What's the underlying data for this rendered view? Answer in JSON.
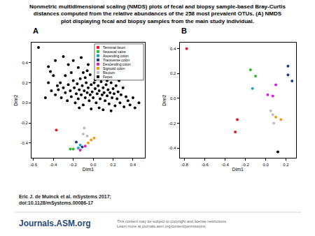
{
  "page": {
    "title_lines": [
      "Nonmetric multidimensional scaling (NMDS) plots of fecal and biopsy sample-based Bray-Curtis",
      "distances computed from the relative abundances of the 258 most prevalent OTUs. (A) NMDS",
      "plot displaying fecal and biopsy samples from the main study individual."
    ],
    "citation_lines": [
      "Eric J. de Muinck et al. mSystems 2017;",
      "doi:10.1128/mSystems.00086-17"
    ],
    "logo": "Journals.ASM.org",
    "notice_lines": [
      "This content may be subject to copyright and license restrictions.",
      "Learn more at journals.asm.org/content/permissions"
    ]
  },
  "chart_data": [
    {
      "type": "scatter",
      "title": "A",
      "x_label": "Dim1",
      "y_label": "Dim2",
      "xlim": [
        -0.62,
        0.52
      ],
      "xticks": [
        -0.6,
        -0.4,
        -0.2,
        {
          "value": 0,
          "label": "0.0"
        },
        0.2,
        0.4
      ],
      "ylim": [
        -0.55,
        0.6
      ],
      "yticks": [
        -0.4,
        -0.2,
        {
          "value": 0,
          "label": "0.0"
        },
        0.2,
        0.4
      ],
      "grid": false,
      "legend": "top right",
      "series": [
        {
          "name": "Terminal ileum",
          "color": "#e31a1c",
          "x": [
            -0.37
          ],
          "y": [
            -0.27
          ]
        },
        {
          "name": "Ileocecal valve",
          "color": "#2db82d",
          "x": [
            -0.23,
            -0.2
          ],
          "y": [
            -0.46,
            -0.46
          ]
        },
        {
          "name": "Ascending colon",
          "color": "#1ba3c6",
          "x": [
            -0.15,
            -0.13
          ],
          "y": [
            -0.45,
            -0.42
          ]
        },
        {
          "name": "Transverse colon",
          "color": "#1f3a93",
          "x": [
            -0.17,
            -0.11
          ],
          "y": [
            -0.39,
            -0.44
          ]
        },
        {
          "name": "Descending colon",
          "color": "#d61fd6",
          "x": [
            -0.13,
            -0.08
          ],
          "y": [
            -0.47,
            -0.43
          ]
        },
        {
          "name": "Sigmoid colon",
          "color": "#f39c12",
          "x": [
            -0.05,
            -0.02,
            0.01
          ],
          "y": [
            -0.4,
            -0.37,
            -0.35
          ]
        },
        {
          "name": "Rectum",
          "color": "#bdbdbd",
          "x": [
            -0.09,
            -0.1,
            -0.06
          ],
          "y": [
            -0.25,
            -0.31,
            -0.33
          ]
        },
        {
          "name": "Feces",
          "color": "#000000",
          "x": [
            -0.55,
            -0.45,
            -0.43,
            -0.4,
            -0.38,
            -0.3,
            -0.33,
            -0.36,
            -0.25,
            -0.22,
            -0.28,
            -0.2,
            -0.15,
            -0.1,
            -0.12,
            -0.05,
            -0.08,
            -0.03,
            -0.42,
            -0.38,
            -0.35,
            -0.32,
            -0.3,
            -0.28,
            -0.26,
            -0.25,
            -0.23,
            -0.22,
            -0.2,
            -0.19,
            -0.18,
            -0.17,
            -0.16,
            -0.15,
            -0.14,
            -0.13,
            -0.12,
            -0.11,
            -0.1,
            -0.09,
            -0.08,
            -0.07,
            -0.06,
            -0.05,
            -0.04,
            -0.03,
            -0.02,
            -0.01,
            0.0,
            0.01,
            0.02,
            0.03,
            0.04,
            0.05,
            0.06,
            0.07,
            0.08,
            0.09,
            0.1,
            0.11,
            0.12,
            0.13,
            0.14,
            0.15,
            0.16,
            0.17,
            0.18,
            0.19,
            0.2,
            0.21,
            0.22,
            0.23,
            0.24,
            0.25,
            0.27,
            0.28,
            0.3,
            0.31,
            0.33,
            0.35,
            0.37,
            0.4,
            0.42,
            0.46,
            -0.48,
            -0.45,
            0.06,
            -0.02,
            0.1,
            0.18,
            -0.14,
            0.26,
            0.02,
            -0.06,
            0.14
          ],
          "y": [
            0.55,
            0.36,
            0.31,
            0.27,
            0.42,
            0.46,
            0.2,
            0.17,
            0.38,
            0.3,
            0.27,
            0.42,
            0.35,
            0.3,
            0.45,
            0.38,
            0.25,
            0.28,
            0.12,
            0.08,
            0.13,
            0.05,
            0.15,
            0.1,
            0.02,
            0.18,
            0.12,
            0.06,
            0.22,
            0.15,
            0.0,
            0.09,
            0.19,
            0.04,
            0.13,
            0.24,
            0.08,
            0.17,
            -0.02,
            0.12,
            0.05,
            0.2,
            0.1,
            0.15,
            0.02,
            0.08,
            0.18,
            0.11,
            0.05,
            0.2,
            0.14,
            0.0,
            0.09,
            0.17,
            0.12,
            0.04,
            0.21,
            0.08,
            0.15,
            0.1,
            0.02,
            0.18,
            0.07,
            0.13,
            -0.01,
            0.1,
            0.2,
            0.05,
            0.14,
            0.09,
            -0.03,
            0.17,
            0.04,
            0.11,
            0.0,
            0.08,
            0.15,
            -0.04,
            0.06,
            0.02,
            -0.02,
            0.05,
            -0.05,
            0.0,
            0.05,
            0.2,
            -0.05,
            -0.06,
            -0.07,
            -0.08,
            -0.05,
            0.22,
            0.23,
            0.32,
            0.22
          ]
        }
      ]
    },
    {
      "type": "scatter",
      "title": "B",
      "x_label": "Dim1",
      "y_label": "Dim2",
      "xlim": [
        -0.85,
        0.3
      ],
      "xticks": [
        -0.8,
        -0.6,
        -0.4,
        -0.2,
        {
          "value": 0,
          "label": "0.0"
        },
        0.2
      ],
      "ylim": [
        -0.48,
        0.45
      ],
      "yticks": [
        -0.4,
        -0.2,
        {
          "value": 0,
          "label": "0.0"
        },
        0.2,
        0.4
      ],
      "grid": false,
      "series": [
        {
          "name": "Terminal ileum",
          "color": "#e31a1c",
          "x": [
            -0.78,
            -0.28,
            -0.3
          ],
          "y": [
            0.4,
            -0.17,
            -0.27
          ]
        },
        {
          "name": "Ileocecal valve",
          "color": "#2db82d",
          "x": [
            -0.15,
            -0.1
          ],
          "y": [
            0.23,
            0.18
          ]
        },
        {
          "name": "Ascending colon",
          "color": "#1ba3c6",
          "x": [
            -0.13
          ],
          "y": [
            0.08
          ]
        },
        {
          "name": "Transverse colon",
          "color": "#1f3a93",
          "x": [
            0.22,
            0.22,
            0.26
          ],
          "y": [
            0.26,
            0.19,
            0.14
          ]
        },
        {
          "name": "Descending colon",
          "color": "#d61fd6",
          "x": [
            0.02,
            0.07,
            0.1
          ],
          "y": [
            0.03,
            0.02,
            0.11
          ]
        },
        {
          "name": "Sigmoid colon",
          "color": "#f39c12",
          "x": [
            0.1,
            0.15
          ],
          "y": [
            -0.15,
            -0.17
          ]
        },
        {
          "name": "Rectum",
          "color": "#bdbdbd",
          "x": [
            0.05,
            0.07,
            0.08
          ],
          "y": [
            -0.1,
            -0.13,
            -0.2
          ]
        },
        {
          "name": "Feces",
          "color": "#000000",
          "x": [
            0.12
          ],
          "y": [
            -0.43
          ]
        }
      ]
    }
  ]
}
